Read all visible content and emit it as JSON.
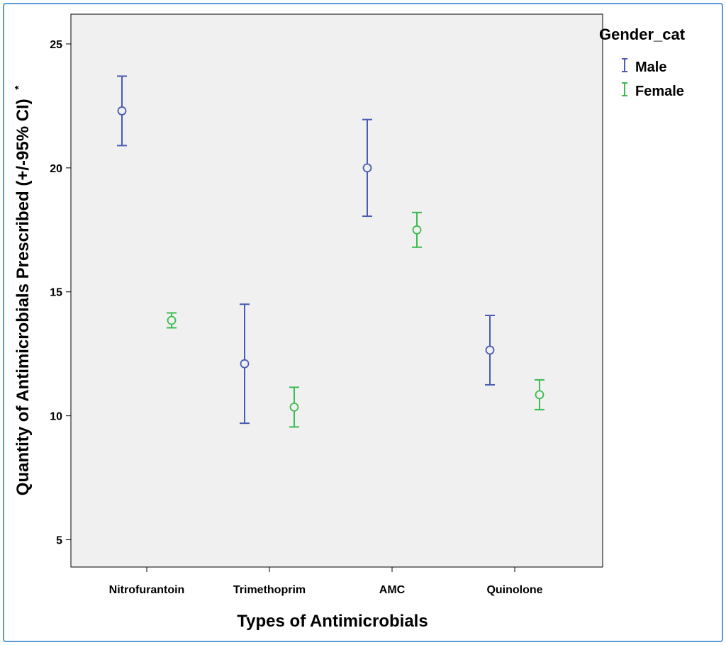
{
  "chart_data": {
    "type": "errorbar",
    "xlabel": "Types of Antimicrobials",
    "ylabel": "Quantity of Antimicrobials Prescribed (+/-95% CI)",
    "ylabel_note": "*",
    "categories": [
      "Nitrofurantoin",
      "Trimethoprim",
      "AMC",
      "Quinolone"
    ],
    "ylim": [
      3.9,
      26.2
    ],
    "yticks": [
      5,
      10,
      15,
      20,
      25
    ],
    "grid": false,
    "legend": {
      "title": "Gender_cat",
      "position": "right"
    },
    "series": [
      {
        "name": "Male",
        "color": "#4a5bb5",
        "mean": [
          22.3,
          12.1,
          20.0,
          12.65
        ],
        "lower": [
          20.9,
          9.7,
          18.05,
          11.25
        ],
        "upper": [
          23.7,
          14.5,
          21.95,
          14.05
        ]
      },
      {
        "name": "Female",
        "color": "#3dbb4e",
        "mean": [
          13.85,
          10.35,
          17.5,
          10.85
        ],
        "lower": [
          13.55,
          9.55,
          16.8,
          10.25
        ],
        "upper": [
          14.15,
          11.15,
          18.2,
          11.45
        ]
      }
    ]
  },
  "colors": {
    "plot_background": "#f0f0f0",
    "frame_border": "#5b9bd5"
  }
}
